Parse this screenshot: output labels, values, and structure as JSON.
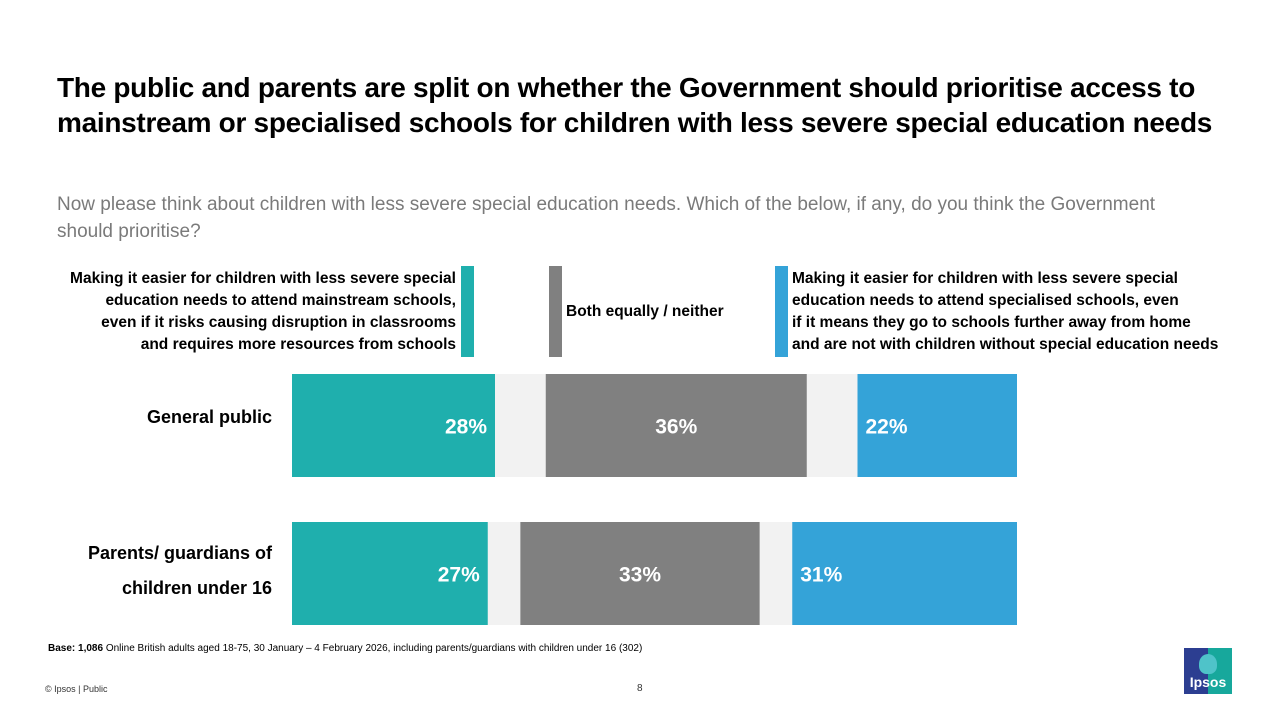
{
  "header": {
    "title": "The public and parents are split on whether the Government should prioritise access to mainstream or specialised schools for children with less severe special education needs",
    "subtitle": "Now please think about children with less severe special education needs. Which of the below, if any, do you think the Government should prioritise?"
  },
  "legend": [
    {
      "label_lines": [
        "Making it easier for children with less severe special",
        "education needs to attend mainstream schools,",
        "even if it risks causing disruption in classrooms",
        "and requires more resources from schools"
      ],
      "color": "#1fafad"
    },
    {
      "label_lines": [
        "Both equally / neither"
      ],
      "color": "#808080"
    },
    {
      "label_lines": [
        "Making it easier for children with less severe special",
        "education needs to attend specialised schools, even",
        "if it means they go to schools further away from home",
        "and are not with children without special education needs"
      ],
      "color": "#34a3d8"
    }
  ],
  "rows": [
    {
      "label_lines": [
        "General public"
      ]
    },
    {
      "label_lines": [
        "Parents/ guardians of",
        "children under 16"
      ]
    }
  ],
  "chart_data": {
    "type": "bar",
    "orientation": "horizontal-stacked-with-gaps",
    "title": "The public and parents are split on whether the Government should prioritise access to mainstream or specialised schools for children with less severe special education needs",
    "categories": [
      "General public",
      "Parents/ guardians of children under 16"
    ],
    "series": [
      {
        "name": "Making it easier for children with less severe special education needs to attend mainstream schools, even if it risks causing disruption in classrooms and requires more resources from schools",
        "values": [
          28,
          27
        ],
        "color": "#1fafad"
      },
      {
        "name": "Both equally / neither",
        "values": [
          36,
          33
        ],
        "color": "#808080"
      },
      {
        "name": "Making it easier for children with less severe special education needs to attend specialised schools, even if it means they go to schools further away from home and are not with children without special education needs",
        "values": [
          22,
          31
        ],
        "color": "#34a3d8"
      }
    ],
    "gap_color": "#f2f2f2",
    "value_suffix": "%",
    "xlim": [
      0,
      100
    ],
    "legend_position": "top",
    "grid": false
  },
  "footer": {
    "base_label": "Base:",
    "base_value": "1,086",
    "base_text": "Online British adults aged 18-75, 30 January – 4 February 2026, including parents/guardians with children under 16 (302)",
    "copyright": "© Ipsos | Public",
    "page_number": "8",
    "logo_text": "Ipsos"
  }
}
